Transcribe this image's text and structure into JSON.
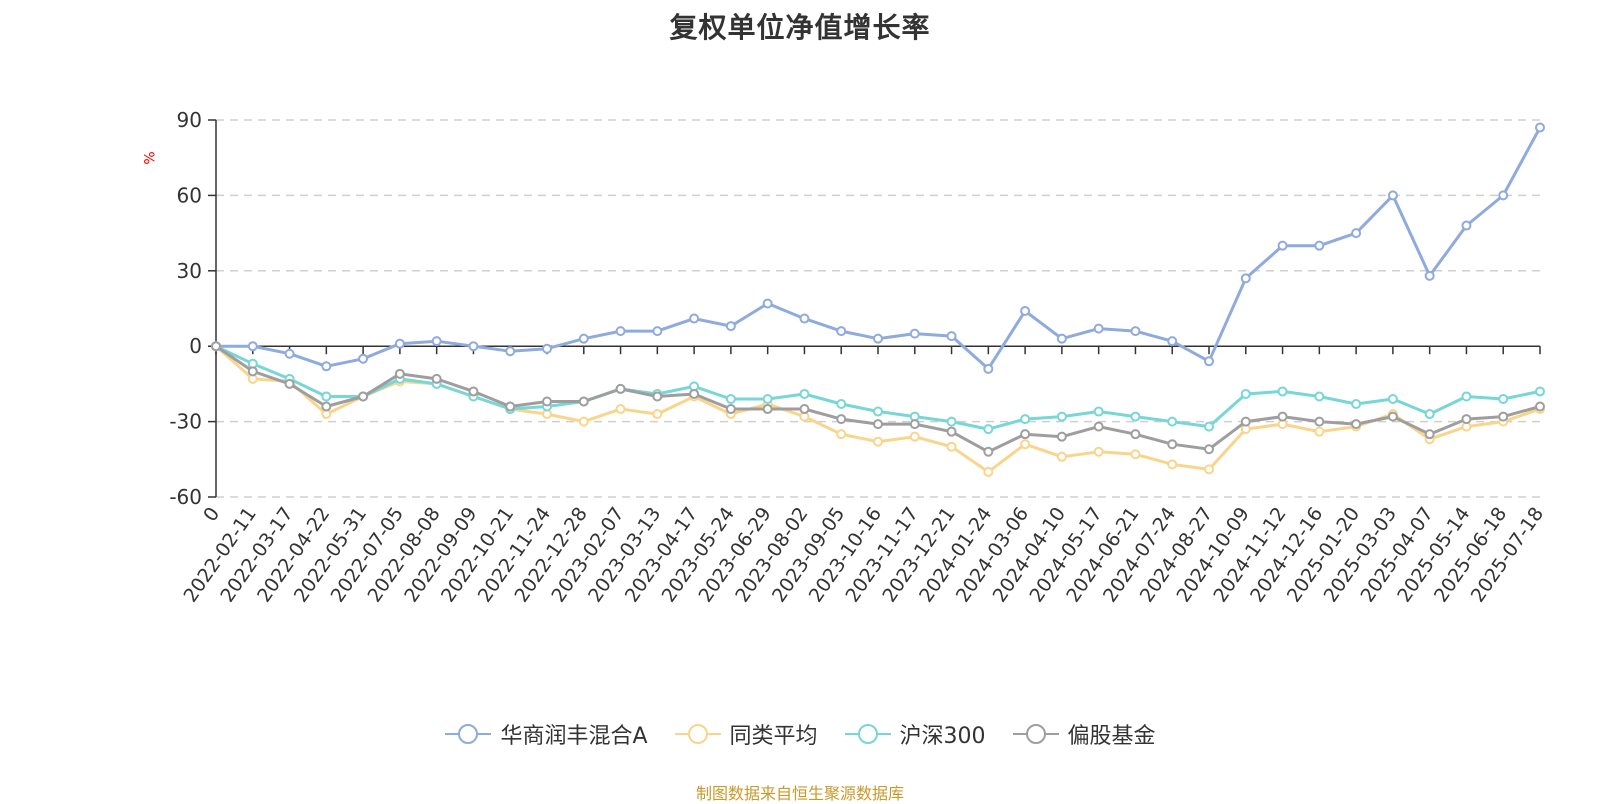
{
  "title": "复权单位净值增长率",
  "y_unit": "%",
  "source_note": "制图数据来自恒生聚源数据库",
  "colors": {
    "fund": "#8faadc",
    "peer_avg": "#f9d58c",
    "csi300": "#77d6d6",
    "equity_fund": "#9e9e9e",
    "axis": "#333333",
    "grid": "#cfcfcf",
    "unit": "#ff0000"
  },
  "legend": [
    {
      "name": "华商润丰混合A",
      "color": "#8faadc"
    },
    {
      "name": "同类平均",
      "color": "#f9d58c"
    },
    {
      "name": "沪深300",
      "color": "#77d6d6"
    },
    {
      "name": "偏股基金",
      "color": "#9e9e9e"
    }
  ],
  "chart_data": {
    "type": "line",
    "title": "复权单位净值增长率",
    "xlabel": "",
    "ylabel": "%",
    "ylim": [
      -60,
      90
    ],
    "yticks": [
      -60,
      -30,
      0,
      30,
      60,
      90
    ],
    "grid": true,
    "legend_position": "bottom-center",
    "categories": [
      "0",
      "2022-02-11",
      "2022-03-17",
      "2022-04-22",
      "2022-05-31",
      "2022-07-05",
      "2022-08-08",
      "2022-09-09",
      "2022-10-21",
      "2022-11-24",
      "2022-12-28",
      "2023-02-07",
      "2023-03-13",
      "2023-04-17",
      "2023-05-24",
      "2023-06-29",
      "2023-08-02",
      "2023-09-05",
      "2023-10-16",
      "2023-11-17",
      "2023-12-21",
      "2024-01-24",
      "2024-03-06",
      "2024-04-10",
      "2024-05-17",
      "2024-06-21",
      "2024-07-24",
      "2024-08-27",
      "2024-10-09",
      "2024-11-12",
      "2024-12-16",
      "2025-01-20",
      "2025-03-03",
      "2025-04-07",
      "2025-05-14",
      "2025-06-18",
      "2025-07-18"
    ],
    "series": [
      {
        "name": "华商润丰混合A",
        "values": [
          0,
          0,
          -3,
          -8,
          -5,
          1,
          2,
          0,
          -2,
          -1,
          3,
          6,
          6,
          11,
          8,
          17,
          11,
          6,
          3,
          5,
          4,
          -9,
          14,
          3,
          7,
          6,
          2,
          -6,
          27,
          40,
          40,
          45,
          60,
          28,
          48,
          60,
          87
        ]
      },
      {
        "name": "同类平均",
        "values": [
          0,
          -13,
          -14,
          -27,
          -20,
          -14,
          -15,
          -20,
          -25,
          -27,
          -30,
          -25,
          -27,
          -20,
          -27,
          -23,
          -28,
          -35,
          -38,
          -36,
          -40,
          -50,
          -39,
          -44,
          -42,
          -43,
          -47,
          -49,
          -33,
          -31,
          -34,
          -32,
          -27,
          -37,
          -32,
          -30,
          -25
        ]
      },
      {
        "name": "沪深300",
        "values": [
          0,
          -7,
          -13,
          -20,
          -20,
          -13,
          -15,
          -20,
          -25,
          -24,
          -22,
          -17,
          -19,
          -16,
          -21,
          -21,
          -19,
          -23,
          -26,
          -28,
          -30,
          -33,
          -29,
          -28,
          -26,
          -28,
          -30,
          -32,
          -19,
          -18,
          -20,
          -23,
          -21,
          -27,
          -20,
          -21,
          -18
        ]
      },
      {
        "name": "偏股基金",
        "values": [
          0,
          -10,
          -15,
          -24,
          -20,
          -11,
          -13,
          -18,
          -24,
          -22,
          -22,
          -17,
          -20,
          -19,
          -25,
          -25,
          -25,
          -29,
          -31,
          -31,
          -34,
          -42,
          -35,
          -36,
          -32,
          -35,
          -39,
          -41,
          -30,
          -28,
          -30,
          -31,
          -28,
          -35,
          -29,
          -28,
          -24
        ]
      }
    ]
  }
}
